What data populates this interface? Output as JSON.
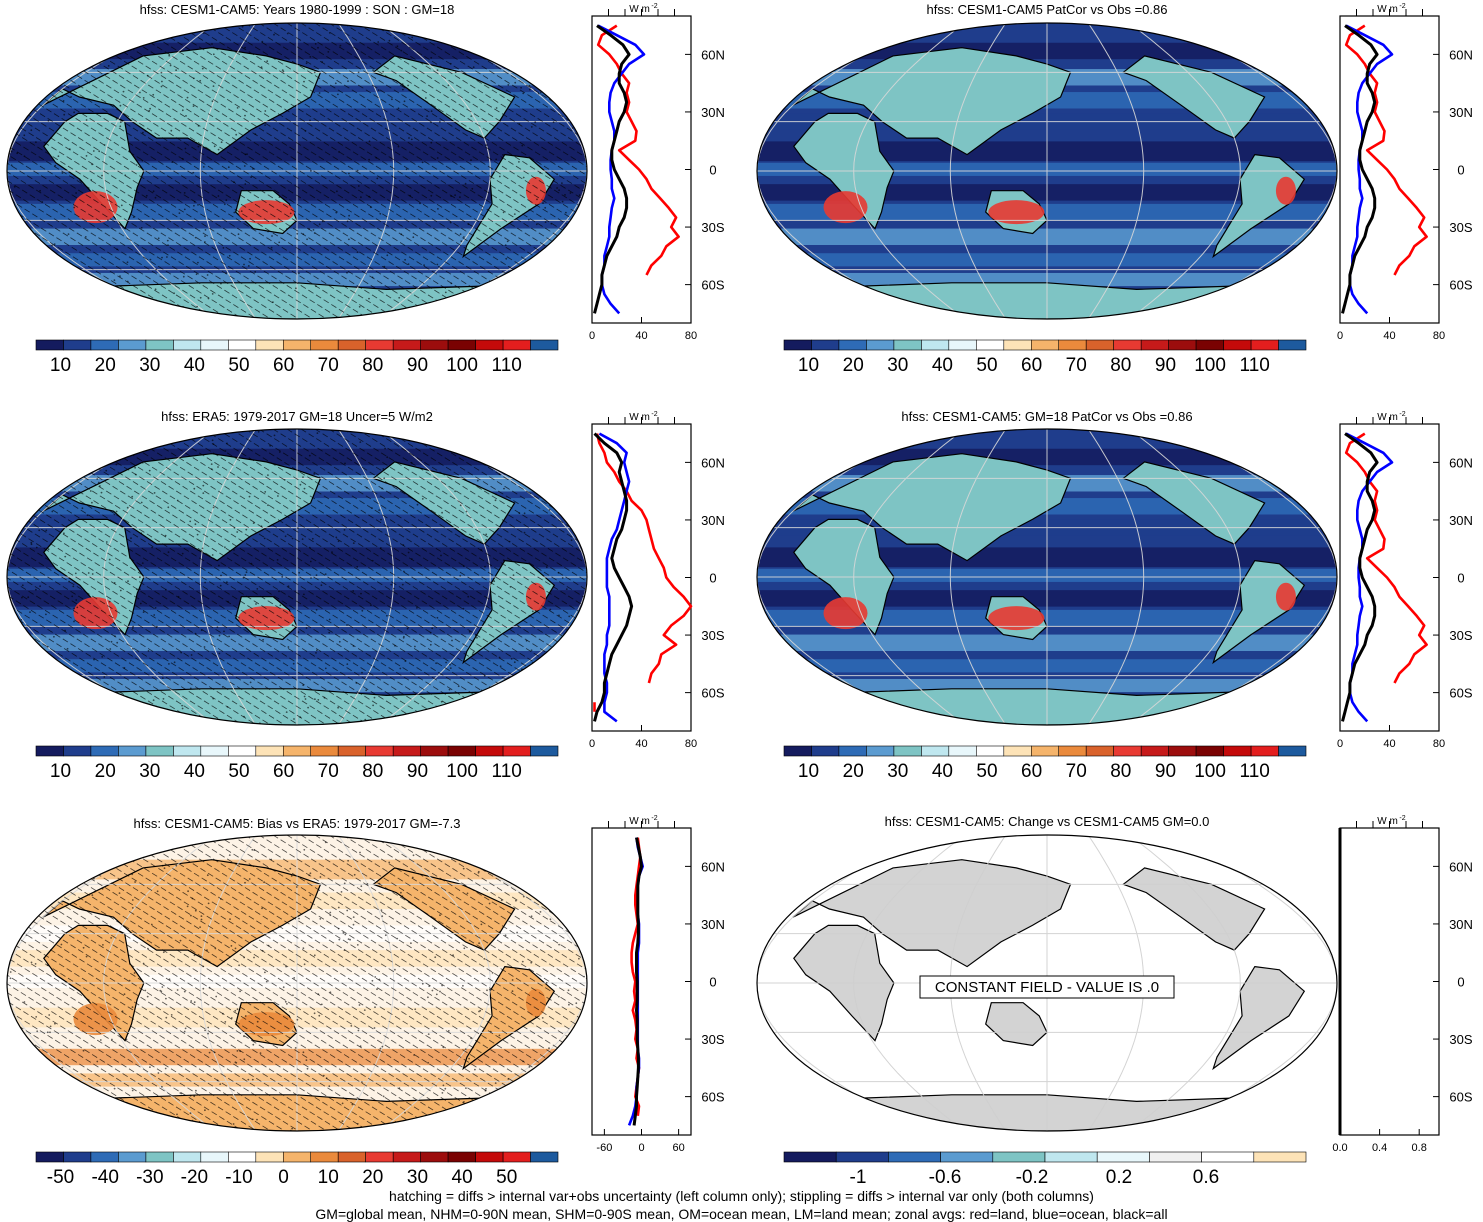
{
  "panels": [
    {
      "id": "p1",
      "title": "hfss: CESM1-CAM5: Years 1980-1999 : SON : GM=18",
      "type": "map",
      "palette": "abs",
      "hatch": true,
      "stipple": true,
      "colorbar_labels": [
        "10",
        "20",
        "30",
        "40",
        "50",
        "60",
        "70",
        "80",
        "90",
        "100",
        "110"
      ],
      "profile": {
        "xticks": [
          "0",
          "40",
          "80"
        ],
        "xlim": [
          0,
          80
        ]
      }
    },
    {
      "id": "p2",
      "title": "hfss: CESM1-CAM5 PatCor vs Obs =0.86",
      "type": "map",
      "palette": "abs",
      "hatch": false,
      "stipple": false,
      "colorbar_labels": [
        "10",
        "20",
        "30",
        "40",
        "50",
        "60",
        "70",
        "80",
        "90",
        "100",
        "110"
      ],
      "profile": {
        "xticks": [
          "0",
          "40",
          "80"
        ],
        "xlim": [
          0,
          80
        ]
      }
    },
    {
      "id": "p3",
      "title": "hfss: ERA5: 1979-2017 GM=18 Uncer=5 W/m2",
      "type": "map",
      "palette": "abs",
      "hatch": true,
      "stipple": true,
      "colorbar_labels": [
        "10",
        "20",
        "30",
        "40",
        "50",
        "60",
        "70",
        "80",
        "90",
        "100",
        "110"
      ],
      "profile": {
        "xticks": [
          "0",
          "40",
          "80"
        ],
        "xlim": [
          0,
          80
        ]
      }
    },
    {
      "id": "p4",
      "title": "hfss: CESM1-CAM5: GM=18 PatCor vs Obs =0.86",
      "type": "map",
      "palette": "abs",
      "hatch": false,
      "stipple": false,
      "colorbar_labels": [
        "10",
        "20",
        "30",
        "40",
        "50",
        "60",
        "70",
        "80",
        "90",
        "100",
        "110"
      ],
      "profile": {
        "xticks": [
          "0",
          "40",
          "80"
        ],
        "xlim": [
          0,
          80
        ]
      }
    },
    {
      "id": "p5",
      "title": "hfss: CESM1-CAM5: Bias vs ERA5: 1979-2017  GM=-7.3",
      "type": "map",
      "palette": "diff",
      "hatch": true,
      "stipple": true,
      "colorbar_labels": [
        "-50",
        "-40",
        "-30",
        "-20",
        "-10",
        "0",
        "10",
        "20",
        "30",
        "40",
        "50"
      ],
      "profile": {
        "xticks": [
          "-60",
          "0",
          "60"
        ],
        "xlim": [
          -80,
          80
        ]
      }
    },
    {
      "id": "p6",
      "title": "hfss: CESM1-CAM5: Change vs CESM1-CAM5 GM=0.0",
      "type": "map",
      "palette": "grey",
      "hatch": false,
      "stipple": false,
      "constant_label": "CONSTANT FIELD - VALUE IS .0",
      "colorbar_labels": [
        "-1",
        "-0.6",
        "-0.2",
        "0.2",
        "0.6"
      ],
      "profile": {
        "xticks": [
          "0.0",
          "0.4",
          "0.8"
        ],
        "xlim": [
          0,
          1
        ]
      }
    }
  ],
  "profile_units": "W m",
  "profile_units_exp": "-2",
  "lat_labels": [
    "60N",
    "30N",
    "0",
    "30S",
    "60S"
  ],
  "lat_values": [
    60,
    30,
    0,
    -30,
    -60
  ],
  "colors": {
    "abs": [
      "#141b5e",
      "#1f3d8c",
      "#2e6bb6",
      "#5b9bd0",
      "#7ec4c4",
      "#bfe7ef",
      "#e8f7fb",
      "#ffffff",
      "#fde3b7",
      "#f5b46b",
      "#ea8a3c",
      "#d9622b",
      "#e83a32",
      "#c61a1a",
      "#9c0d0d",
      "#7a0202",
      "#c40a0a",
      "#e31e1e",
      "#1d5a9e"
    ],
    "diff": [
      "#141b5e",
      "#1f3d8c",
      "#2e6bb6",
      "#5b9bd0",
      "#7ec4c4",
      "#bfe7ef",
      "#e8f7fb",
      "#ffffff",
      "#fde3b7",
      "#f5b46b",
      "#ea8a3c",
      "#d9622b",
      "#e83a32",
      "#c61a1a",
      "#9c0d0d",
      "#7a0202",
      "#c40a0a",
      "#e31e1e",
      "#1d5a9e"
    ],
    "grey": [
      "#141b5e",
      "#1f3d8c",
      "#2e6bb6",
      "#5b9bd0",
      "#7ec4c4",
      "#bfe7ef",
      "#e8f7fb",
      "#f0f0f0",
      "#ffffff",
      "#fde3b7"
    ],
    "land": "#d3d3d3"
  },
  "chart_data": [
    {
      "type": "line",
      "panel": "p1",
      "y": [
        75,
        70,
        65,
        60,
        55,
        50,
        45,
        40,
        35,
        30,
        25,
        20,
        15,
        10,
        5,
        0,
        -5,
        -10,
        -15,
        -20,
        -25,
        -30,
        -35,
        -40,
        -45,
        -50,
        -55,
        -60,
        -65,
        -70,
        -75
      ],
      "series": [
        {
          "name": "land",
          "color": "red",
          "x": [
            20,
            8,
            5,
            14,
            20,
            24,
            30,
            28,
            30,
            28,
            32,
            36,
            35,
            22,
            30,
            38,
            44,
            48,
            55,
            62,
            68,
            64,
            70,
            60,
            56,
            48,
            44,
            null,
            null,
            null,
            null
          ]
        },
        {
          "name": "ocean",
          "color": "blue",
          "x": [
            5,
            20,
            35,
            42,
            30,
            24,
            18,
            15,
            14,
            14,
            16,
            18,
            18,
            16,
            15,
            15,
            16,
            16,
            18,
            16,
            15,
            14,
            14,
            12,
            10,
            10,
            8,
            8,
            10,
            15,
            22
          ]
        },
        {
          "name": "all",
          "color": "black",
          "x": [
            4,
            15,
            25,
            30,
            24,
            22,
            22,
            26,
            28,
            26,
            22,
            20,
            18,
            16,
            16,
            18,
            22,
            26,
            28,
            28,
            26,
            22,
            20,
            16,
            12,
            10,
            8,
            8,
            6,
            4,
            2
          ]
        }
      ]
    },
    {
      "type": "line",
      "panel": "p2",
      "y": [
        75,
        70,
        65,
        60,
        55,
        50,
        45,
        40,
        35,
        30,
        25,
        20,
        15,
        10,
        5,
        0,
        -5,
        -10,
        -15,
        -20,
        -25,
        -30,
        -35,
        -40,
        -45,
        -50,
        -55,
        -60,
        -65,
        -70,
        -75
      ],
      "series": [
        {
          "name": "land",
          "color": "red",
          "x": [
            20,
            8,
            5,
            14,
            20,
            24,
            30,
            28,
            30,
            28,
            32,
            36,
            35,
            22,
            30,
            38,
            44,
            48,
            55,
            62,
            68,
            64,
            70,
            60,
            56,
            48,
            44,
            null,
            null,
            null,
            null
          ]
        },
        {
          "name": "ocean",
          "color": "blue",
          "x": [
            5,
            20,
            35,
            42,
            30,
            24,
            18,
            15,
            14,
            14,
            16,
            18,
            18,
            16,
            15,
            15,
            16,
            16,
            18,
            16,
            15,
            14,
            14,
            12,
            10,
            10,
            8,
            8,
            10,
            15,
            22
          ]
        },
        {
          "name": "all",
          "color": "black",
          "x": [
            4,
            15,
            25,
            30,
            24,
            22,
            22,
            26,
            28,
            26,
            22,
            20,
            18,
            16,
            16,
            18,
            22,
            26,
            28,
            28,
            26,
            22,
            20,
            16,
            12,
            10,
            8,
            8,
            6,
            4,
            2
          ]
        }
      ]
    },
    {
      "type": "line",
      "panel": "p3",
      "y": [
        75,
        70,
        65,
        60,
        55,
        50,
        45,
        40,
        35,
        30,
        25,
        20,
        15,
        10,
        5,
        0,
        -5,
        -10,
        -15,
        -20,
        -25,
        -30,
        -35,
        -40,
        -45,
        -50,
        -55,
        -60,
        -65,
        -70,
        -75
      ],
      "series": [
        {
          "name": "land",
          "color": "red",
          "x": [
            4,
            6,
            10,
            12,
            18,
            22,
            28,
            32,
            40,
            44,
            46,
            48,
            50,
            54,
            58,
            60,
            66,
            74,
            80,
            74,
            64,
            58,
            68,
            56,
            54,
            48,
            46,
            null,
            2,
            2,
            null
          ]
        },
        {
          "name": "ocean",
          "color": "blue",
          "x": [
            6,
            20,
            28,
            26,
            28,
            30,
            28,
            26,
            24,
            22,
            20,
            16,
            14,
            12,
            12,
            12,
            12,
            14,
            14,
            14,
            14,
            12,
            12,
            10,
            10,
            10,
            12,
            12,
            10,
            10,
            20
          ]
        },
        {
          "name": "all",
          "color": "black",
          "x": [
            2,
            10,
            20,
            24,
            22,
            24,
            26,
            28,
            28,
            26,
            24,
            20,
            18,
            16,
            18,
            22,
            26,
            30,
            32,
            30,
            28,
            24,
            20,
            16,
            14,
            12,
            10,
            10,
            8,
            4,
            2
          ]
        }
      ]
    },
    {
      "type": "line",
      "panel": "p4",
      "y": [
        75,
        70,
        65,
        60,
        55,
        50,
        45,
        40,
        35,
        30,
        25,
        20,
        15,
        10,
        5,
        0,
        -5,
        -10,
        -15,
        -20,
        -25,
        -30,
        -35,
        -40,
        -45,
        -50,
        -55,
        -60,
        -65,
        -70,
        -75
      ],
      "series": [
        {
          "name": "land",
          "color": "red",
          "x": [
            20,
            8,
            5,
            14,
            20,
            24,
            30,
            28,
            30,
            28,
            32,
            36,
            35,
            22,
            30,
            38,
            44,
            48,
            55,
            62,
            68,
            64,
            70,
            60,
            56,
            48,
            44,
            null,
            null,
            null,
            null
          ]
        },
        {
          "name": "ocean",
          "color": "blue",
          "x": [
            5,
            20,
            35,
            42,
            30,
            24,
            18,
            15,
            14,
            14,
            16,
            18,
            18,
            16,
            15,
            15,
            16,
            16,
            18,
            16,
            15,
            14,
            14,
            12,
            10,
            10,
            8,
            8,
            10,
            15,
            22
          ]
        },
        {
          "name": "all",
          "color": "black",
          "x": [
            4,
            15,
            25,
            30,
            24,
            22,
            22,
            26,
            28,
            26,
            22,
            20,
            18,
            16,
            16,
            18,
            22,
            26,
            28,
            28,
            26,
            22,
            20,
            16,
            12,
            10,
            8,
            8,
            6,
            4,
            2
          ]
        }
      ]
    },
    {
      "type": "line",
      "panel": "p5",
      "y": [
        75,
        70,
        65,
        60,
        55,
        50,
        45,
        40,
        35,
        30,
        25,
        20,
        15,
        10,
        5,
        0,
        -5,
        -10,
        -15,
        -20,
        -25,
        -30,
        -35,
        -40,
        -45,
        -50,
        -55,
        -60,
        -65,
        -70,
        -75
      ],
      "series": [
        {
          "name": "land",
          "color": "red",
          "x": [
            -6,
            -4,
            -2,
            -4,
            -6,
            -8,
            -10,
            -10,
            -8,
            -6,
            -10,
            -14,
            -16,
            -16,
            -14,
            -10,
            -12,
            -10,
            -14,
            -10,
            -8,
            -10,
            -6,
            -8,
            -4,
            -6,
            -8,
            -10,
            -4,
            -6,
            null
          ]
        },
        {
          "name": "ocean",
          "color": "blue",
          "x": [
            -8,
            -6,
            -2,
            2,
            -4,
            -6,
            -6,
            -6,
            -6,
            -4,
            -4,
            -4,
            -6,
            -6,
            -6,
            -6,
            -6,
            -6,
            -6,
            -6,
            -6,
            -6,
            -6,
            -4,
            -4,
            -6,
            -8,
            -8,
            -10,
            -14,
            -20
          ]
        },
        {
          "name": "all",
          "color": "black",
          "x": [
            -8,
            -5,
            -2,
            0,
            -4,
            -6,
            -6,
            -6,
            -6,
            -5,
            -5,
            -6,
            -8,
            -8,
            -8,
            -7,
            -7,
            -7,
            -8,
            -7,
            -7,
            -7,
            -6,
            -5,
            -5,
            -6,
            -7,
            -8,
            -8,
            -10,
            -12
          ]
        }
      ]
    },
    {
      "type": "line",
      "panel": "p6",
      "y": [
        80,
        -80
      ],
      "series": [
        {
          "name": "all",
          "color": "black",
          "x": [
            0,
            0
          ]
        }
      ]
    }
  ],
  "footer": {
    "line1": "hatching = diffs > internal var+obs uncertainty (left column only); stippling = diffs > internal var only (both columns)",
    "line2": "GM=global mean, NHM=0-90N mean, SHM=0-90S mean, OM=ocean mean, LM=land mean; zonal avgs: red=land, blue=ocean, black=all"
  }
}
